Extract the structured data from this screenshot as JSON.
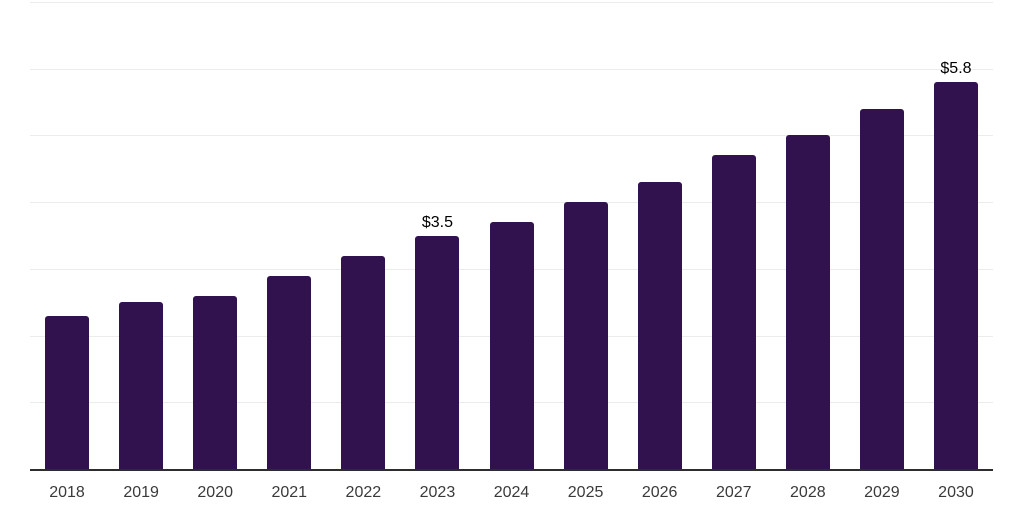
{
  "chart_data": {
    "type": "bar",
    "categories": [
      "2018",
      "2019",
      "2020",
      "2021",
      "2022",
      "2023",
      "2024",
      "2025",
      "2026",
      "2027",
      "2028",
      "2029",
      "2030"
    ],
    "values": [
      2.3,
      2.5,
      2.6,
      2.9,
      3.2,
      3.5,
      3.7,
      4.0,
      4.3,
      4.7,
      5.0,
      5.4,
      5.8
    ],
    "data_labels": [
      {
        "category": "2023",
        "text": "$3.5"
      },
      {
        "category": "2030",
        "text": "$5.8"
      }
    ],
    "title": "",
    "xlabel": "",
    "ylabel": "",
    "ylim": [
      0,
      7
    ],
    "gridline_step": 1,
    "gridline_count": 7,
    "grid": "horizontal-only",
    "legend": "none",
    "y_tick_labels_visible": false,
    "colors": {
      "bar": "#32124e",
      "background": "#ffffff",
      "gridline": "#ececec",
      "axis_line": "#2d2d2d",
      "tick_label": "#3a3a3a",
      "data_label": "#000000"
    }
  }
}
